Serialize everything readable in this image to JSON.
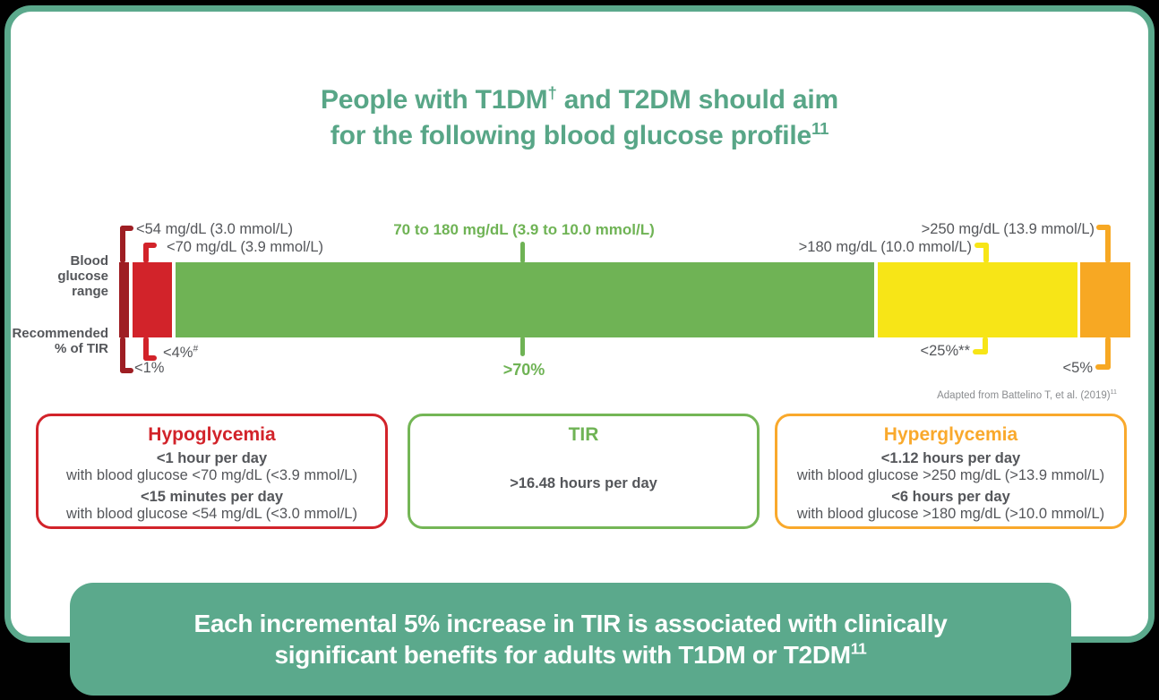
{
  "title": {
    "l1a": "People with T1DM",
    "l1sup": "†",
    "l1b": " and T2DM should aim",
    "l2a": "for the following blood glucose profile",
    "l2sup": "11"
  },
  "row_labels": {
    "bg_l1": "Blood",
    "bg_l2": "glucose",
    "bg_l3": "range",
    "tir_l1": "Recommended",
    "tir_l2": "% of TIR"
  },
  "annotations": {
    "very_low_range": "<54 mg/dL (3.0 mmol/L)",
    "low_range": "<70 mg/dL (3.9 mmol/L)",
    "in_range": "70 to 180 mg/dL (3.9 to 10.0 mmol/L)",
    "high_range": ">180 mg/dL (10.0 mmol/L)",
    "very_high_range": ">250 mg/dL (13.9 mmol/L)",
    "very_low_pct": "<1%",
    "low_pct": "<4%",
    "low_pct_sup": "#",
    "in_range_pct": ">70%",
    "high_pct": "<25%",
    "high_pct_sup": "**",
    "very_high_pct": "<5%"
  },
  "footnote": {
    "a": "Adapted from Battelino T, et al. (2019)",
    "sup": "11"
  },
  "boxes": {
    "hypo": {
      "title": "Hypoglycemia",
      "b1": "<1 hour per day",
      "r1": "with blood glucose <70 mg/dL (<3.9 mmol/L)",
      "b2": "<15 minutes per day",
      "r2": "with blood glucose <54 mg/dL (<3.0 mmol/L)"
    },
    "tir": {
      "title": "TIR",
      "b1": ">16.48 hours per day"
    },
    "hyper": {
      "title": "Hyperglycemia",
      "b1": "<1.12 hours per day",
      "r1": "with blood glucose >250 mg/dL (>13.9 mmol/L)",
      "b2": "<6 hours per day",
      "r2": "with blood glucose >180 mg/dL (>10.0 mmol/L)"
    }
  },
  "banner": {
    "l1": "Each incremental 5% increase in TIR is associated with clinically",
    "l2a": "significant benefits for adults with T1DM or T2DM",
    "l2sup": "11"
  },
  "colors": {
    "teal": "#5BA98C",
    "title_teal": "#58A687",
    "dark_red": "#9E1E23",
    "red": "#D2232A",
    "green": "#6FB355",
    "yellow": "#F7E517",
    "orange": "#F7A823",
    "box_border_orange": "#F9A92C",
    "text_gray": "#54565A",
    "footnote_gray": "#8A8C8F"
  },
  "chart_data": {
    "type": "bar",
    "orientation": "horizontal-stacked",
    "title": "Recommended blood glucose profile (Time in Range targets)",
    "row_labels": [
      "Blood glucose range",
      "Recommended % of TIR"
    ],
    "segments": [
      {
        "name": "very-low",
        "glucose_range": "<54 mg/dL (3.0 mmol/L)",
        "tir_label": "<1%",
        "value_pct": 1,
        "color": "#9E1E23"
      },
      {
        "name": "low",
        "glucose_range": "<70 mg/dL (3.9 mmol/L)",
        "tir_label": "<4%#",
        "value_pct": 4,
        "color": "#D2232A"
      },
      {
        "name": "in-range",
        "glucose_range": "70 to 180 mg/dL (3.9 to 10.0 mmol/L)",
        "tir_label": ">70%",
        "value_pct": 70,
        "color": "#6FB355"
      },
      {
        "name": "high",
        "glucose_range": ">180 mg/dL (10.0 mmol/L)",
        "tir_label": "<25%**",
        "value_pct": 20,
        "color": "#F7E517"
      },
      {
        "name": "very-high",
        "glucose_range": ">250 mg/dL (13.9 mmol/L)",
        "tir_label": "<5%",
        "value_pct": 5,
        "color": "#F7A823"
      }
    ],
    "source": "Adapted from Battelino T, et al. (2019)11"
  }
}
